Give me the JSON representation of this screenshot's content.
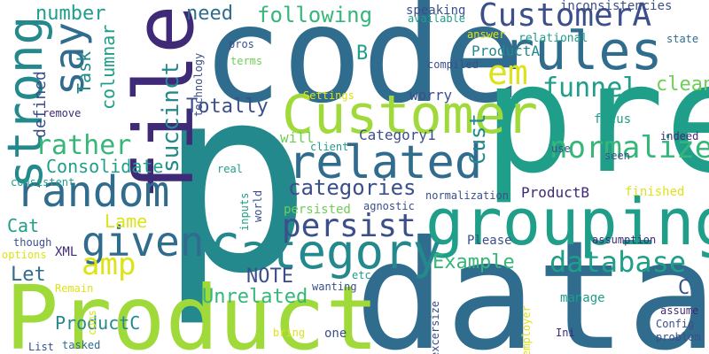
{
  "title": "Word cloud",
  "palette": {
    "navy": "#3f2a78",
    "indigo": "#3b4f8a",
    "steel": "#2f6c8e",
    "teal": "#23898d",
    "sea": "#1f9e89",
    "green": "#35b779",
    "lime": "#6ece58",
    "yellowgreen": "#9fda3a",
    "yellow": "#dde318"
  },
  "words": [
    {
      "text": "p",
      "color": "teal"
    },
    {
      "text": "code",
      "color": "steel"
    },
    {
      "text": "pre",
      "color": "sea"
    },
    {
      "text": "data",
      "color": "steel"
    },
    {
      "text": "Product",
      "color": "yellowgreen"
    },
    {
      "text": "grouping",
      "color": "sea"
    },
    {
      "text": "file",
      "color": "navy"
    },
    {
      "text": "rules",
      "color": "steel"
    },
    {
      "text": "Customer",
      "color": "yellowgreen"
    },
    {
      "text": "related",
      "color": "steel"
    },
    {
      "text": "Category",
      "color": "teal"
    },
    {
      "text": "random",
      "color": "steel"
    },
    {
      "text": "given",
      "color": "steel"
    },
    {
      "text": "strong",
      "color": "teal"
    },
    {
      "text": "say",
      "color": "steel"
    },
    {
      "text": "CustomerA",
      "color": "indigo"
    },
    {
      "text": "em",
      "color": "yellow"
    },
    {
      "text": "normalize",
      "color": "green"
    },
    {
      "text": "database",
      "color": "sea"
    },
    {
      "text": "persist",
      "color": "indigo"
    },
    {
      "text": "categories",
      "color": "indigo"
    },
    {
      "text": "amp",
      "color": "yellow"
    },
    {
      "text": "rather",
      "color": "green"
    },
    {
      "text": "funnel",
      "color": "sea"
    },
    {
      "text": "Consolidate",
      "color": "sea"
    },
    {
      "text": "succinct",
      "color": "teal"
    },
    {
      "text": "following",
      "color": "green"
    },
    {
      "text": "number",
      "color": "sea"
    },
    {
      "text": "need",
      "color": "steel"
    },
    {
      "text": "Totally",
      "color": "indigo"
    },
    {
      "text": "Unrelated",
      "color": "green"
    },
    {
      "text": "Example",
      "color": "green"
    },
    {
      "text": "columnar",
      "color": "sea"
    },
    {
      "text": "Task",
      "color": "teal"
    },
    {
      "text": "defined",
      "color": "indigo"
    },
    {
      "text": "clean",
      "color": "lime"
    },
    {
      "text": "Cust",
      "color": "teal"
    },
    {
      "text": "Category1",
      "color": "indigo"
    },
    {
      "text": "NOTE",
      "color": "indigo"
    },
    {
      "text": "Lame",
      "color": "yellow"
    },
    {
      "text": "Cat",
      "color": "sea"
    },
    {
      "text": "Let",
      "color": "steel"
    },
    {
      "text": "ProductC",
      "color": "teal"
    },
    {
      "text": "ProductA",
      "color": "teal"
    },
    {
      "text": "ProductB",
      "color": "navy"
    },
    {
      "text": "B",
      "color": "sea"
    },
    {
      "text": "C",
      "color": "indigo"
    },
    {
      "text": "inconsistencies",
      "color": "indigo"
    },
    {
      "text": "speaking",
      "color": "indigo"
    },
    {
      "text": "available",
      "color": "sea"
    },
    {
      "text": "answer",
      "color": "yellow"
    },
    {
      "text": "relational",
      "color": "sea"
    },
    {
      "text": "state",
      "color": "steel"
    },
    {
      "text": "pros",
      "color": "indigo"
    },
    {
      "text": "terms",
      "color": "lime"
    },
    {
      "text": "compiled",
      "color": "indigo"
    },
    {
      "text": "technology",
      "color": "indigo"
    },
    {
      "text": "Settings",
      "color": "yellow"
    },
    {
      "text": "worry",
      "color": "indigo"
    },
    {
      "text": "remove",
      "color": "navy"
    },
    {
      "text": "focus",
      "color": "sea"
    },
    {
      "text": "will",
      "color": "lime"
    },
    {
      "text": "client",
      "color": "sea"
    },
    {
      "text": "use",
      "color": "indigo"
    },
    {
      "text": "indeed",
      "color": "navy"
    },
    {
      "text": "seen",
      "color": "indigo"
    },
    {
      "text": "consistent",
      "color": "sea"
    },
    {
      "text": "real",
      "color": "sea"
    },
    {
      "text": "XML",
      "color": "navy"
    },
    {
      "text": "inputs",
      "color": "sea"
    },
    {
      "text": "world",
      "color": "indigo"
    },
    {
      "text": "normalization",
      "color": "indigo"
    },
    {
      "text": "finished",
      "color": "yellow"
    },
    {
      "text": "persisted",
      "color": "lime"
    },
    {
      "text": "agnostic",
      "color": "indigo"
    },
    {
      "text": "though",
      "color": "indigo"
    },
    {
      "text": "Please",
      "color": "indigo"
    },
    {
      "text": "assumption",
      "color": "navy"
    },
    {
      "text": "options",
      "color": "yellow"
    },
    {
      "text": "Remain",
      "color": "yellow"
    },
    {
      "text": "wanting",
      "color": "indigo"
    },
    {
      "text": "etc",
      "color": "sea"
    },
    {
      "text": "manage",
      "color": "sea"
    },
    {
      "text": "assume",
      "color": "navy"
    },
    {
      "text": "cons",
      "color": "yellow"
    },
    {
      "text": "excersize",
      "color": "indigo"
    },
    {
      "text": "employer",
      "color": "yellow"
    },
    {
      "text": "Config",
      "color": "indigo"
    },
    {
      "text": "problem",
      "color": "indigo"
    },
    {
      "text": "bring",
      "color": "yellow"
    },
    {
      "text": "one",
      "color": "indigo"
    },
    {
      "text": "Ini",
      "color": "navy"
    },
    {
      "text": "tasked",
      "color": "steel"
    },
    {
      "text": "List",
      "color": "indigo"
    }
  ]
}
